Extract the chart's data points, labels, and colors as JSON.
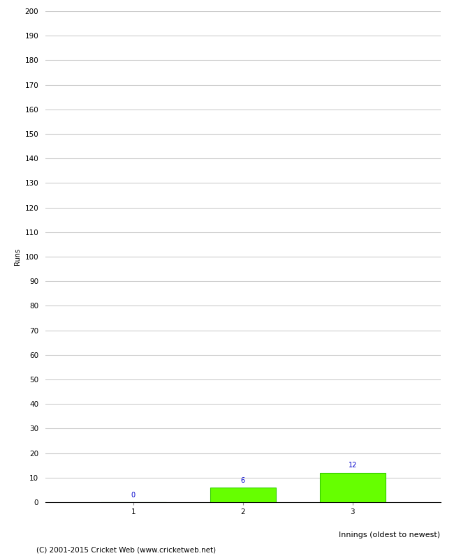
{
  "categories": [
    "1",
    "2",
    "3"
  ],
  "values": [
    0,
    6,
    12
  ],
  "bar_color": "#66ff00",
  "bar_edge_color": "#33cc00",
  "xlabel": "Innings (oldest to newest)",
  "ylabel": "Runs",
  "ylim": [
    0,
    200
  ],
  "ytick_step": 10,
  "annotation_color": "#0000cc",
  "annotation_fontsize": 7,
  "xlabel_fontsize": 8,
  "ylabel_fontsize": 7,
  "tick_fontsize": 7.5,
  "footer_text": "(C) 2001-2015 Cricket Web (www.cricketweb.net)",
  "footer_fontsize": 7.5,
  "grid_color": "#cccccc",
  "background_color": "#ffffff",
  "figure_width": 6.5,
  "figure_height": 8.0,
  "dpi": 100
}
